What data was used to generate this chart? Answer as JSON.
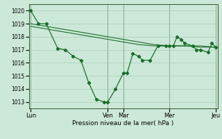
{
  "background_color": "#cce8d8",
  "grid_color": "#aacfbc",
  "line_color": "#1a6e2a",
  "marker_color": "#1a6e2a",
  "xlabel": "Pression niveau de la mer( hPa )",
  "ylim": [
    1012.5,
    1020.5
  ],
  "yticks": [
    1013,
    1014,
    1015,
    1016,
    1017,
    1018,
    1019,
    1020
  ],
  "day_labels": [
    "Lun",
    "Ven",
    "Mar",
    "Mer",
    "Jeu"
  ],
  "day_positions": [
    0,
    40,
    48,
    72,
    96
  ],
  "series1_x": [
    0,
    4,
    8,
    14,
    18,
    22,
    26,
    30,
    34,
    38,
    40,
    44,
    48,
    50,
    53,
    56,
    58,
    62,
    66,
    70,
    72,
    74,
    76,
    78,
    80,
    84,
    86,
    88,
    92,
    94,
    96
  ],
  "series1_y": [
    1020,
    1019,
    1019,
    1017.1,
    1017.0,
    1016.5,
    1016.2,
    1014.5,
    1013.2,
    1013.0,
    1013.0,
    1014.0,
    1015.2,
    1015.2,
    1016.7,
    1016.5,
    1016.2,
    1016.2,
    1017.3,
    1017.3,
    1017.3,
    1017.3,
    1018.0,
    1017.8,
    1017.5,
    1017.3,
    1017.0,
    1017.0,
    1016.8,
    1017.5,
    1017.2
  ],
  "series2_x": [
    0,
    8,
    16,
    24,
    32,
    40,
    48,
    56,
    64,
    72,
    80,
    88,
    96
  ],
  "series2_y": [
    1019.0,
    1018.8,
    1018.6,
    1018.4,
    1018.2,
    1018.0,
    1017.8,
    1017.6,
    1017.4,
    1017.3,
    1017.3,
    1017.3,
    1017.2
  ],
  "series3_x": [
    0,
    8,
    16,
    24,
    32,
    40,
    48,
    56,
    64,
    72,
    80,
    88,
    96
  ],
  "series3_y": [
    1018.8,
    1018.6,
    1018.4,
    1018.2,
    1018.0,
    1017.8,
    1017.6,
    1017.4,
    1017.3,
    1017.3,
    1017.3,
    1017.2,
    1017.2
  ]
}
